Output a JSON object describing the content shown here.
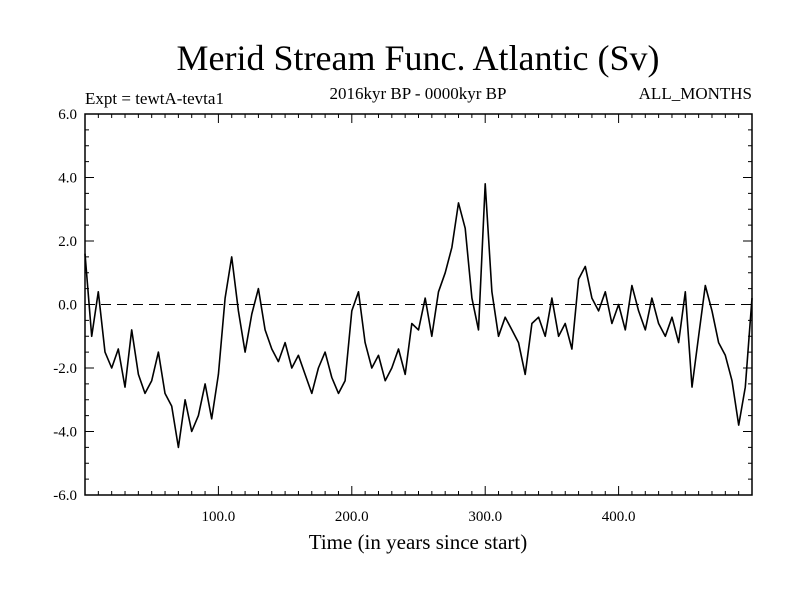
{
  "chart_data": {
    "type": "line",
    "title": "Merid Stream Func. Atlantic (Sv)",
    "subtitle_left": "Expt = tewtA-tevta1",
    "subtitle_center": "2016kyr BP - 0000kyr BP",
    "subtitle_right": "ALL_MONTHS",
    "xlabel": "Time (in years since start)",
    "ylabel": "",
    "xlim": [
      0,
      500
    ],
    "ylim": [
      -6,
      6
    ],
    "xticks": [
      {
        "value": 100,
        "label": "100.0"
      },
      {
        "value": 200,
        "label": "200.0"
      },
      {
        "value": 300,
        "label": "300.0"
      },
      {
        "value": 400,
        "label": "400.0"
      }
    ],
    "yticks": [
      {
        "value": 6,
        "label": "6.0"
      },
      {
        "value": 4,
        "label": "4.0"
      },
      {
        "value": 2,
        "label": "2.0"
      },
      {
        "value": 0,
        "label": "0.0"
      },
      {
        "value": -2,
        "label": "-2.0"
      },
      {
        "value": -4,
        "label": "-4.0"
      },
      {
        "value": -6,
        "label": "-6.0"
      }
    ],
    "reference_line": {
      "y": 0,
      "style": "dashed"
    },
    "grid": false,
    "series": [
      {
        "name": "Merid Stream Func. Atlantic",
        "x": [
          0,
          5,
          10,
          15,
          20,
          25,
          30,
          35,
          40,
          45,
          50,
          55,
          60,
          65,
          70,
          75,
          80,
          85,
          90,
          95,
          100,
          105,
          110,
          115,
          120,
          125,
          130,
          135,
          140,
          145,
          150,
          155,
          160,
          165,
          170,
          175,
          180,
          185,
          190,
          195,
          200,
          205,
          210,
          215,
          220,
          225,
          230,
          235,
          240,
          245,
          250,
          255,
          260,
          265,
          270,
          275,
          280,
          285,
          290,
          295,
          300,
          305,
          310,
          315,
          320,
          325,
          330,
          335,
          340,
          345,
          350,
          355,
          360,
          365,
          370,
          375,
          380,
          385,
          390,
          395,
          400,
          405,
          410,
          415,
          420,
          425,
          430,
          435,
          440,
          445,
          450,
          455,
          460,
          465,
          470,
          475,
          480,
          485,
          490,
          495,
          500
        ],
        "y": [
          1.6,
          -1.0,
          0.4,
          -1.5,
          -2.0,
          -1.4,
          -2.6,
          -0.8,
          -2.2,
          -2.8,
          -2.4,
          -1.5,
          -2.8,
          -3.2,
          -4.5,
          -3.0,
          -4.0,
          -3.5,
          -2.5,
          -3.6,
          -2.2,
          0.2,
          1.5,
          -0.2,
          -1.5,
          -0.3,
          0.5,
          -0.8,
          -1.4,
          -1.8,
          -1.2,
          -2.0,
          -1.6,
          -2.2,
          -2.8,
          -2.0,
          -1.5,
          -2.3,
          -2.8,
          -2.4,
          -0.2,
          0.4,
          -1.2,
          -2.0,
          -1.6,
          -2.4,
          -2.0,
          -1.4,
          -2.2,
          -0.6,
          -0.8,
          0.2,
          -1.0,
          0.4,
          1.0,
          1.8,
          3.2,
          2.4,
          0.2,
          -0.8,
          3.8,
          0.4,
          -1.0,
          -0.4,
          -0.8,
          -1.2,
          -2.2,
          -0.6,
          -0.4,
          -1.0,
          0.2,
          -1.0,
          -0.6,
          -1.4,
          0.8,
          1.2,
          0.2,
          -0.2,
          0.4,
          -0.6,
          0.0,
          -0.8,
          0.6,
          -0.2,
          -0.8,
          0.2,
          -0.6,
          -1.0,
          -0.4,
          -1.2,
          0.4,
          -2.6,
          -1.0,
          0.6,
          -0.2,
          -1.2,
          -1.6,
          -2.4,
          -3.8,
          -2.6,
          0.2
        ]
      }
    ]
  }
}
